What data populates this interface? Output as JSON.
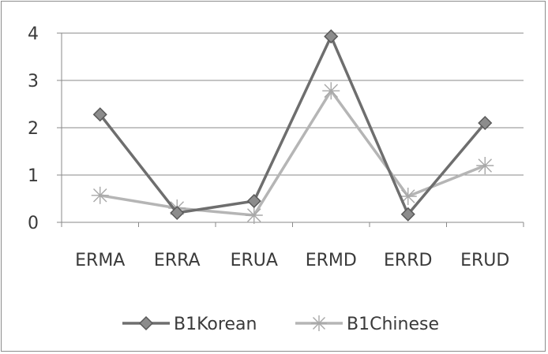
{
  "chart_data": {
    "type": "line",
    "title": "",
    "xlabel": "",
    "ylabel": "",
    "categories": [
      "ERMA",
      "ERRA",
      "ERUA",
      "ERMD",
      "ERRD",
      "ERUD"
    ],
    "ylim": [
      0,
      4
    ],
    "yticks": [
      "0",
      "1",
      "2",
      "3",
      "4"
    ],
    "grid": true,
    "legend_position": "bottom",
    "series": [
      {
        "name": "B1Korean",
        "values": [
          2.28,
          0.2,
          0.45,
          3.93,
          0.17,
          2.1
        ],
        "color": "#6e6e6e",
        "marker": "diamond"
      },
      {
        "name": "B1Chinese",
        "values": [
          0.57,
          0.3,
          0.15,
          2.78,
          0.55,
          1.2
        ],
        "color": "#b5b5b5",
        "marker": "star"
      }
    ]
  }
}
